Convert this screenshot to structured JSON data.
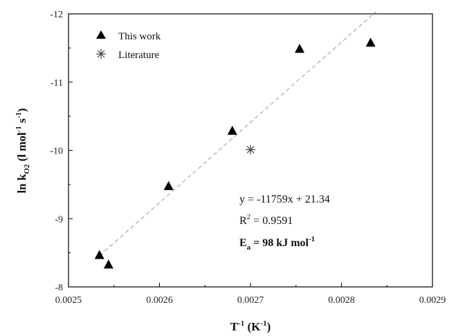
{
  "chart_data": {
    "type": "scatter",
    "title": "",
    "xlabel": {
      "base": "T",
      "sup1": "-1",
      "mid": " (K",
      "sup2": "-1",
      "end": ")"
    },
    "ylabel": {
      "pre": "ln k",
      "sub": "O2",
      "mid": " (l mol",
      "sup1": "-1",
      "mid2": " s",
      "sup2": "-1",
      "end": ")"
    },
    "xlim": [
      0.0025,
      0.0029
    ],
    "ylim": [
      -8,
      -12
    ],
    "xticks": [
      "0.0025",
      "0.0026",
      "0.0027",
      "0.0028",
      "0.0029"
    ],
    "xtick_values": [
      0.0025,
      0.0026,
      0.0027,
      0.0028,
      0.0029
    ],
    "yticks": [
      "-8",
      "-9",
      "-10",
      "-11",
      "-12"
    ],
    "ytick_values": [
      -8,
      -9,
      -10,
      -11,
      -12
    ],
    "legend_position": "top-left",
    "grid": false,
    "series": [
      {
        "name": "This work",
        "marker": "triangle",
        "color": "#000000",
        "points": [
          {
            "x": 0.002534,
            "y": -8.47
          },
          {
            "x": 0.002544,
            "y": -8.33
          },
          {
            "x": 0.00261,
            "y": -9.48
          },
          {
            "x": 0.00268,
            "y": -10.29
          },
          {
            "x": 0.002754,
            "y": -11.49
          },
          {
            "x": 0.002832,
            "y": -11.58
          }
        ]
      },
      {
        "name": "Literature",
        "marker": "asterisk",
        "color": "#444444",
        "points": [
          {
            "x": 0.0027,
            "y": -10.01
          }
        ]
      }
    ],
    "fit_line": {
      "style": "dashed",
      "color": "#b0b0b0",
      "slope": -11759,
      "intercept": 21.34,
      "x_range": [
        0.002534,
        0.002838
      ]
    },
    "annotations": {
      "equation": "y = -11759x + 21.34",
      "r2_base": "R",
      "r2_sup": "2",
      "r2_val": " = 0.9591",
      "ea_base": "E",
      "ea_sub": "a",
      "ea_val": " = 98 kJ mol",
      "ea_sup": "-1"
    }
  }
}
